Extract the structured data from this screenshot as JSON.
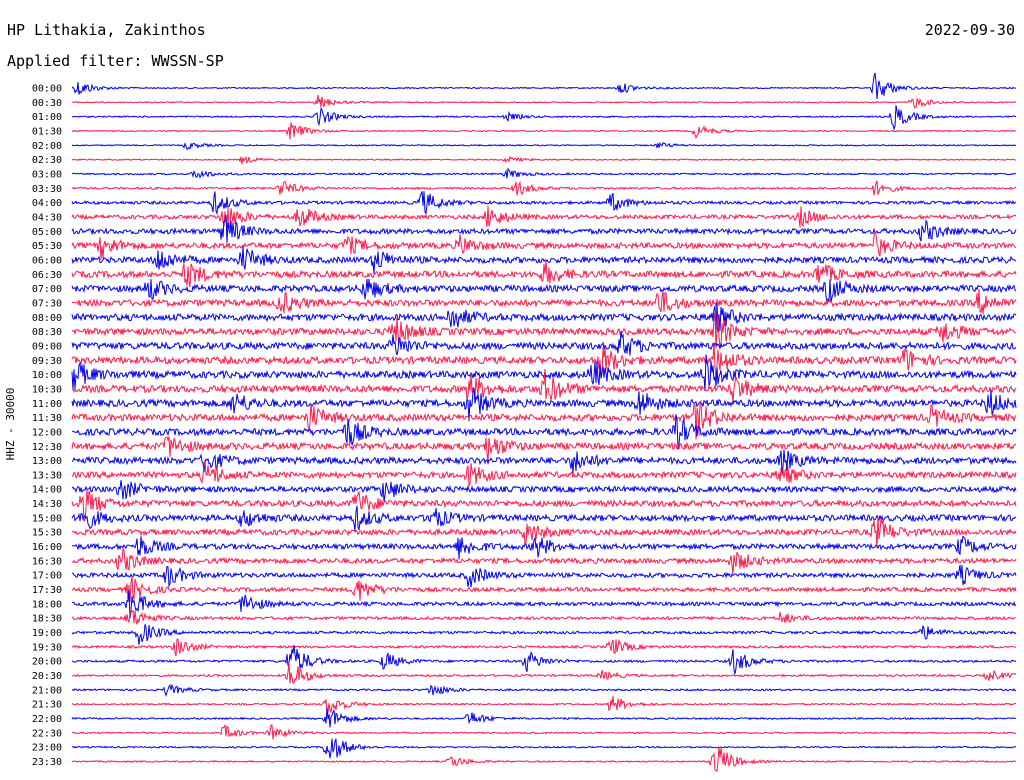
{
  "header": {
    "station": "HP Lithakia, Zakinthos",
    "date": "2022-09-30",
    "filter": "Applied filter: WWSSN-SP"
  },
  "chart_data": {
    "type": "line",
    "title": "HP Lithakia, Zakinthos",
    "subtitle": "Applied filter: WWSSN-SP",
    "ylabel": "HHZ - 30000",
    "xlabel": "",
    "grid": false,
    "legend": "none",
    "row_colors": [
      "#0000ee",
      "#ff1a4b"
    ],
    "rows": [
      {
        "label": "00:00",
        "noise": 0.6,
        "events": [
          [
            0.005,
            9
          ],
          [
            0.58,
            6
          ],
          [
            0.85,
            16
          ]
        ]
      },
      {
        "label": "00:30",
        "noise": 0.6,
        "events": [
          [
            0.26,
            7
          ],
          [
            0.89,
            7
          ]
        ]
      },
      {
        "label": "01:00",
        "noise": 0.7,
        "events": [
          [
            0.26,
            10
          ],
          [
            0.46,
            4
          ],
          [
            0.87,
            14
          ]
        ]
      },
      {
        "label": "01:30",
        "noise": 0.6,
        "events": [
          [
            0.23,
            10
          ],
          [
            0.66,
            7
          ]
        ]
      },
      {
        "label": "02:00",
        "noise": 0.6,
        "events": [
          [
            0.12,
            4
          ],
          [
            0.62,
            3
          ]
        ]
      },
      {
        "label": "02:30",
        "noise": 0.6,
        "events": [
          [
            0.18,
            4
          ],
          [
            0.46,
            3
          ]
        ]
      },
      {
        "label": "03:00",
        "noise": 0.8,
        "events": [
          [
            0.13,
            5
          ],
          [
            0.46,
            5
          ]
        ]
      },
      {
        "label": "03:30",
        "noise": 1.0,
        "events": [
          [
            0.22,
            9
          ],
          [
            0.47,
            8
          ],
          [
            0.85,
            8
          ]
        ]
      },
      {
        "label": "04:00",
        "noise": 1.5,
        "events": [
          [
            0.15,
            12
          ],
          [
            0.37,
            14
          ],
          [
            0.57,
            10
          ]
        ]
      },
      {
        "label": "04:30",
        "noise": 2.0,
        "events": [
          [
            0.16,
            16
          ],
          [
            0.24,
            13
          ],
          [
            0.44,
            12
          ],
          [
            0.77,
            10
          ]
        ]
      },
      {
        "label": "05:00",
        "noise": 2.5,
        "events": [
          [
            0.16,
            18
          ],
          [
            0.9,
            12
          ]
        ]
      },
      {
        "label": "05:30",
        "noise": 2.8,
        "events": [
          [
            0.03,
            12
          ],
          [
            0.29,
            10
          ],
          [
            0.41,
            10
          ],
          [
            0.85,
            12
          ]
        ]
      },
      {
        "label": "06:00",
        "noise": 3.0,
        "events": [
          [
            0.09,
            13
          ],
          [
            0.18,
            14
          ],
          [
            0.32,
            12
          ]
        ]
      },
      {
        "label": "06:30",
        "noise": 3.2,
        "events": [
          [
            0.12,
            14
          ],
          [
            0.5,
            12
          ],
          [
            0.79,
            12
          ]
        ]
      },
      {
        "label": "07:00",
        "noise": 3.2,
        "events": [
          [
            0.08,
            12
          ],
          [
            0.31,
            12
          ],
          [
            0.8,
            14
          ]
        ]
      },
      {
        "label": "07:30",
        "noise": 3.2,
        "events": [
          [
            0.22,
            12
          ],
          [
            0.62,
            14
          ],
          [
            0.96,
            12
          ]
        ]
      },
      {
        "label": "08:00",
        "noise": 3.3,
        "events": [
          [
            0.4,
            14
          ],
          [
            0.68,
            16
          ]
        ]
      },
      {
        "label": "08:30",
        "noise": 3.3,
        "events": [
          [
            0.34,
            16
          ],
          [
            0.68,
            20
          ],
          [
            0.92,
            12
          ]
        ]
      },
      {
        "label": "09:00",
        "noise": 3.4,
        "events": [
          [
            0.34,
            12
          ],
          [
            0.58,
            14
          ]
        ]
      },
      {
        "label": "09:30",
        "noise": 3.5,
        "events": [
          [
            0.56,
            16
          ],
          [
            0.68,
            18
          ],
          [
            0.88,
            12
          ]
        ]
      },
      {
        "label": "10:00",
        "noise": 3.5,
        "events": [
          [
            0.0,
            16
          ],
          [
            0.55,
            14
          ],
          [
            0.67,
            20
          ]
        ]
      },
      {
        "label": "10:30",
        "noise": 3.5,
        "events": [
          [
            0.42,
            16
          ],
          [
            0.5,
            18
          ],
          [
            0.7,
            14
          ]
        ]
      },
      {
        "label": "11:00",
        "noise": 3.4,
        "events": [
          [
            0.17,
            12
          ],
          [
            0.42,
            18
          ],
          [
            0.6,
            14
          ],
          [
            0.97,
            14
          ]
        ]
      },
      {
        "label": "11:30",
        "noise": 3.4,
        "events": [
          [
            0.25,
            14
          ],
          [
            0.66,
            20
          ],
          [
            0.91,
            10
          ]
        ]
      },
      {
        "label": "12:00",
        "noise": 3.3,
        "events": [
          [
            0.29,
            16
          ],
          [
            0.64,
            16
          ]
        ]
      },
      {
        "label": "12:30",
        "noise": 3.3,
        "events": [
          [
            0.1,
            12
          ],
          [
            0.44,
            14
          ]
        ]
      },
      {
        "label": "13:00",
        "noise": 3.2,
        "events": [
          [
            0.14,
            12
          ],
          [
            0.53,
            12
          ],
          [
            0.75,
            12
          ]
        ]
      },
      {
        "label": "13:30",
        "noise": 3.0,
        "events": [
          [
            0.14,
            14
          ],
          [
            0.42,
            12
          ],
          [
            0.75,
            10
          ]
        ]
      },
      {
        "label": "14:00",
        "noise": 2.8,
        "events": [
          [
            0.05,
            12
          ],
          [
            0.33,
            12
          ]
        ]
      },
      {
        "label": "14:30",
        "noise": 3.0,
        "events": [
          [
            0.01,
            18
          ],
          [
            0.3,
            14
          ]
        ]
      },
      {
        "label": "15:00",
        "noise": 3.0,
        "events": [
          [
            0.01,
            14
          ],
          [
            0.18,
            10
          ],
          [
            0.3,
            12
          ],
          [
            0.38,
            12
          ]
        ]
      },
      {
        "label": "15:30",
        "noise": 2.8,
        "events": [
          [
            0.48,
            12
          ],
          [
            0.85,
            18
          ]
        ]
      },
      {
        "label": "16:00",
        "noise": 2.6,
        "events": [
          [
            0.07,
            12
          ],
          [
            0.41,
            12
          ],
          [
            0.49,
            12
          ],
          [
            0.94,
            10
          ]
        ]
      },
      {
        "label": "16:30",
        "noise": 2.5,
        "events": [
          [
            0.05,
            14
          ],
          [
            0.7,
            12
          ]
        ]
      },
      {
        "label": "17:00",
        "noise": 2.2,
        "events": [
          [
            0.1,
            12
          ],
          [
            0.42,
            12
          ],
          [
            0.94,
            10
          ]
        ]
      },
      {
        "label": "17:30",
        "noise": 2.0,
        "events": [
          [
            0.06,
            14
          ],
          [
            0.3,
            14
          ]
        ]
      },
      {
        "label": "18:00",
        "noise": 1.8,
        "events": [
          [
            0.06,
            16
          ],
          [
            0.18,
            12
          ]
        ]
      },
      {
        "label": "18:30",
        "noise": 1.5,
        "events": [
          [
            0.06,
            12
          ],
          [
            0.75,
            6
          ]
        ]
      },
      {
        "label": "19:00",
        "noise": 1.3,
        "events": [
          [
            0.07,
            14
          ],
          [
            0.9,
            8
          ]
        ]
      },
      {
        "label": "19:30",
        "noise": 1.2,
        "events": [
          [
            0.11,
            10
          ],
          [
            0.57,
            10
          ]
        ]
      },
      {
        "label": "20:00",
        "noise": 1.1,
        "events": [
          [
            0.23,
            22
          ],
          [
            0.33,
            10
          ],
          [
            0.48,
            12
          ],
          [
            0.7,
            14
          ]
        ]
      },
      {
        "label": "20:30",
        "noise": 1.0,
        "events": [
          [
            0.23,
            16
          ],
          [
            0.56,
            5
          ],
          [
            0.97,
            6
          ]
        ]
      },
      {
        "label": "21:00",
        "noise": 0.9,
        "events": [
          [
            0.1,
            6
          ],
          [
            0.38,
            7
          ]
        ]
      },
      {
        "label": "21:30",
        "noise": 0.8,
        "events": [
          [
            0.27,
            12
          ],
          [
            0.57,
            10
          ]
        ]
      },
      {
        "label": "22:00",
        "noise": 0.8,
        "events": [
          [
            0.27,
            14
          ],
          [
            0.42,
            8
          ]
        ]
      },
      {
        "label": "22:30",
        "noise": 0.7,
        "events": [
          [
            0.16,
            8
          ],
          [
            0.21,
            8
          ]
        ]
      },
      {
        "label": "23:00",
        "noise": 0.7,
        "events": [
          [
            0.27,
            20
          ]
        ]
      },
      {
        "label": "23:30",
        "noise": 0.7,
        "events": [
          [
            0.4,
            7
          ],
          [
            0.68,
            22
          ]
        ]
      }
    ]
  }
}
